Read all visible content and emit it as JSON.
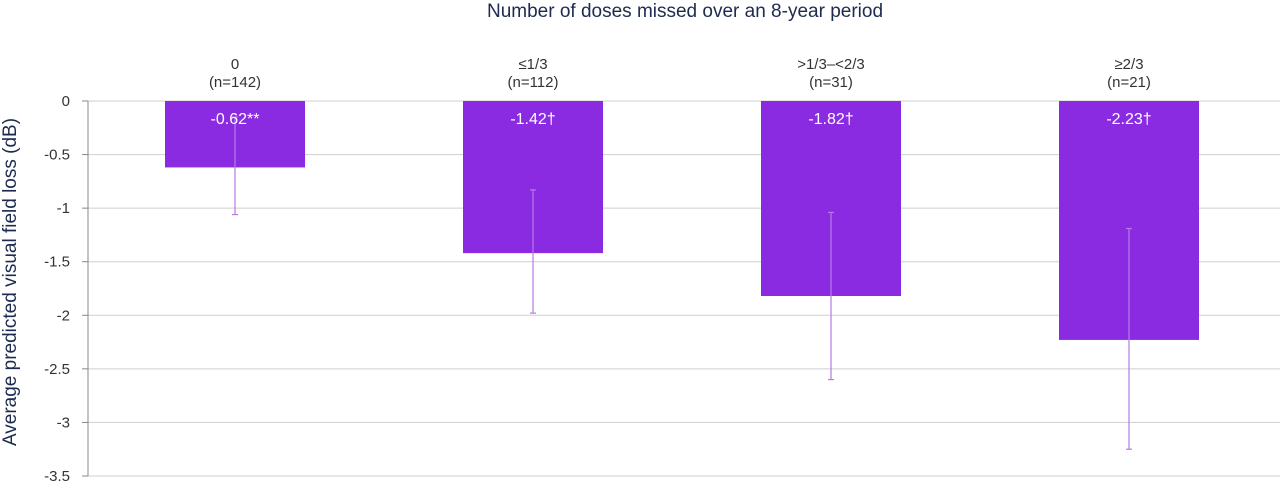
{
  "chart_data": {
    "type": "bar",
    "title": "Number of doses missed over an 8-year period",
    "xlabel": "",
    "ylabel": "Average predicted visual field loss (dB)",
    "categories": [
      "0",
      "≤1/3",
      ">1/3–<2/3",
      "≥2/3"
    ],
    "category_counts": [
      "(n=142)",
      "(n=112)",
      "(n=31)",
      "(n=21)"
    ],
    "values": [
      -0.62,
      -1.42,
      -1.82,
      -2.23
    ],
    "value_labels": [
      "-0.62**",
      "-1.42†",
      "-1.82†",
      "-2.23†"
    ],
    "error_low": [
      -1.06,
      -1.98,
      -2.6,
      -3.25
    ],
    "error_high": [
      -0.15,
      -0.83,
      -1.04,
      -1.19
    ],
    "ylim": [
      -3.5,
      0
    ],
    "yticks": [
      "0",
      "-0.5",
      "-1",
      "-1.5",
      "-2",
      "-2.5",
      "-3",
      "-3.5"
    ],
    "ytick_values": [
      0,
      -0.5,
      -1,
      -1.5,
      -2,
      -2.5,
      -3,
      -3.5
    ],
    "grid": true,
    "legend": "none",
    "colors": {
      "bar": "#8a2be2",
      "errorbar": "#b57ce6",
      "grid": "#cfcfcf",
      "axis": "#888888",
      "title": "#1d2b4f"
    }
  }
}
